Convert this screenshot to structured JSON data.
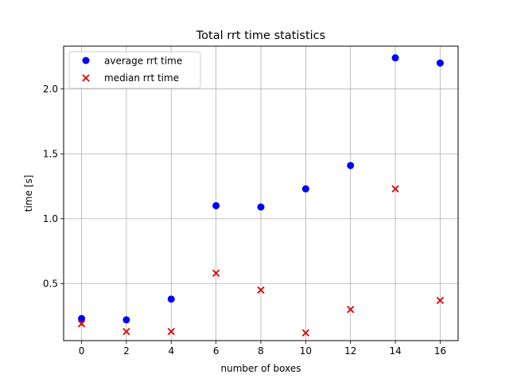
{
  "chart_data": {
    "type": "scatter",
    "title": "Total rrt time statistics",
    "xlabel": "number of boxes",
    "ylabel": "time [s]",
    "xlim": [
      -0.8,
      16.8
    ],
    "ylim": [
      0.06,
      2.33
    ],
    "xticks": [
      0,
      2,
      4,
      6,
      8,
      10,
      12,
      14,
      16
    ],
    "yticks": [
      0.5,
      1.0,
      1.5,
      2.0
    ],
    "ytick_labels": [
      "0.5",
      "1.0",
      "1.5",
      "2.0"
    ],
    "grid": true,
    "legend_position": "top-left",
    "series": [
      {
        "name": "average rrt time",
        "marker": "circle",
        "color": "#0000ff",
        "x": [
          0,
          2,
          4,
          6,
          8,
          10,
          12,
          14,
          16
        ],
        "y": [
          0.23,
          0.22,
          0.38,
          1.1,
          1.09,
          1.23,
          1.41,
          2.24,
          2.2
        ]
      },
      {
        "name": "median rrt time",
        "marker": "x",
        "color": "#e00000",
        "x": [
          0,
          2,
          4,
          6,
          8,
          10,
          12,
          14,
          16
        ],
        "y": [
          0.19,
          0.13,
          0.13,
          0.58,
          0.45,
          0.12,
          0.3,
          1.23,
          0.37
        ]
      }
    ]
  }
}
